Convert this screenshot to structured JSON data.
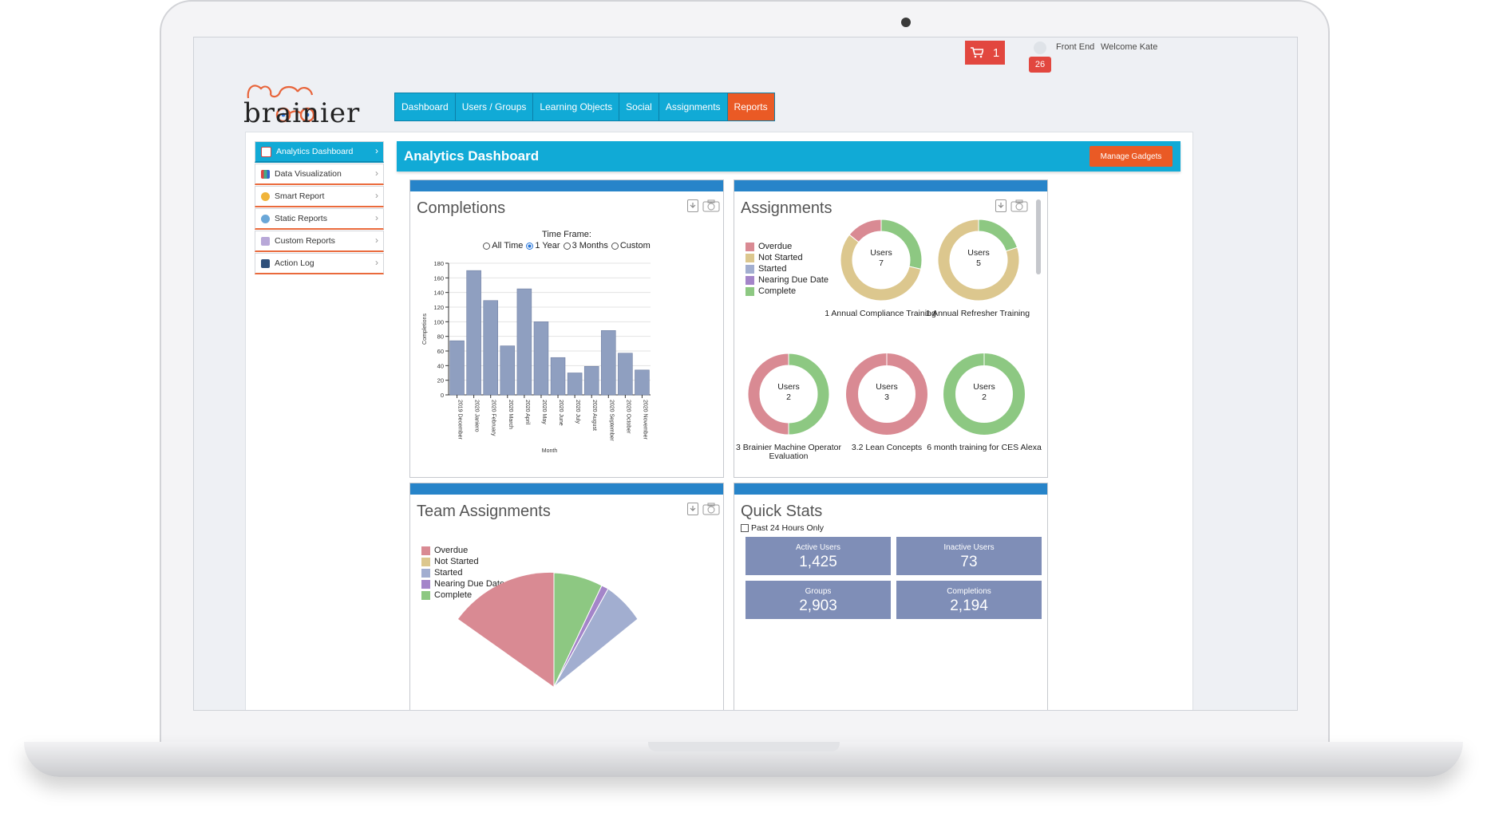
{
  "topbar": {
    "cart_count": "1",
    "notification_count": "26",
    "front_end": "Front End",
    "welcome": "Welcome Kate"
  },
  "logo": {
    "text": "brainier"
  },
  "nav": [
    {
      "label": "Dashboard",
      "active": false
    },
    {
      "label": "Users / Groups",
      "active": false
    },
    {
      "label": "Learning Objects",
      "active": false
    },
    {
      "label": "Social",
      "active": false
    },
    {
      "label": "Assignments",
      "active": false
    },
    {
      "label": "Reports",
      "active": true
    }
  ],
  "sidebar": [
    {
      "label": "Analytics Dashboard",
      "icon": "grid-icon",
      "active": true
    },
    {
      "label": "Data Visualization",
      "icon": "bar-chart-icon",
      "active": false
    },
    {
      "label": "Smart Report",
      "icon": "lightbulb-icon",
      "active": false
    },
    {
      "label": "Static Reports",
      "icon": "globe-icon",
      "active": false
    },
    {
      "label": "Custom Reports",
      "icon": "pencil-icon",
      "active": false
    },
    {
      "label": "Action Log",
      "icon": "log-icon",
      "active": false
    }
  ],
  "header": {
    "title": "Analytics Dashboard",
    "manage_button": "Manage Gadgets"
  },
  "completions": {
    "title": "Completions",
    "timeframe_label": "Time Frame:",
    "options": [
      "All Time",
      "1 Year",
      "3 Months",
      "Custom"
    ],
    "selected": "1 Year"
  },
  "chart_data": {
    "type": "bar",
    "categories": [
      "2019 December",
      "2020 Janiero",
      "2020 February",
      "2020 March",
      "2020 April",
      "2020 May",
      "2020 June",
      "2020 July",
      "2020 August",
      "2020 September",
      "2020 October",
      "2020 November"
    ],
    "values": [
      74,
      170,
      129,
      67,
      145,
      100,
      51,
      30,
      39,
      88,
      57,
      34
    ],
    "title": "",
    "xlabel": "Month",
    "ylabel": "Completions",
    "ylim": [
      0,
      180
    ],
    "yticks": [
      0,
      20,
      40,
      60,
      80,
      100,
      120,
      140,
      160,
      180
    ],
    "bar_color": "#8f9fc0",
    "grid": true
  },
  "assignments": {
    "title": "Assignments",
    "legend": [
      {
        "label": "Overdue",
        "color": "#d98a93"
      },
      {
        "label": "Not Started",
        "color": "#dcc78e"
      },
      {
        "label": "Started",
        "color": "#a2aed0"
      },
      {
        "label": "Nearing Due Date",
        "color": "#a485c9"
      },
      {
        "label": "Complete",
        "color": "#8dc882"
      }
    ],
    "donuts": [
      {
        "users_label": "Users",
        "users": "7",
        "name": "1 Annual Compliance Training",
        "slices": {
          "overdue": 1,
          "not_started": 4,
          "complete": 2
        }
      },
      {
        "users_label": "Users",
        "users": "5",
        "name": "1 Annual Refresher Training",
        "slices": {
          "overdue": 0,
          "not_started": 4,
          "complete": 1
        }
      },
      {
        "users_label": "Users",
        "users": "2",
        "name": "3 Brainier Machine Operator Evaluation",
        "slices": {
          "overdue": 1,
          "not_started": 0,
          "complete": 1
        }
      },
      {
        "users_label": "Users",
        "users": "3",
        "name": "3.2 Lean Concepts",
        "slices": {
          "overdue": 3,
          "not_started": 0,
          "complete": 0
        }
      },
      {
        "users_label": "Users",
        "users": "2",
        "name": "6 month training for CES Alexa",
        "slices": {
          "overdue": 0,
          "not_started": 0,
          "complete": 2
        }
      }
    ]
  },
  "team_assignments": {
    "title": "Team Assignments",
    "legend": [
      {
        "label": "Overdue",
        "color": "#d98a93"
      },
      {
        "label": "Not Started",
        "color": "#dcc78e"
      },
      {
        "label": "Started",
        "color": "#a2aed0"
      },
      {
        "label": "Nearing Due Date",
        "color": "#a485c9"
      },
      {
        "label": "Complete",
        "color": "#8dc882"
      }
    ]
  },
  "quick_stats": {
    "title": "Quick Stats",
    "checkbox_label": "Past 24 Hours Only",
    "stats": [
      {
        "label": "Active Users",
        "value": "1,425"
      },
      {
        "label": "Inactive Users",
        "value": "73"
      },
      {
        "label": "Groups",
        "value": "2,903"
      },
      {
        "label": "Completions",
        "value": "2,194"
      }
    ]
  }
}
